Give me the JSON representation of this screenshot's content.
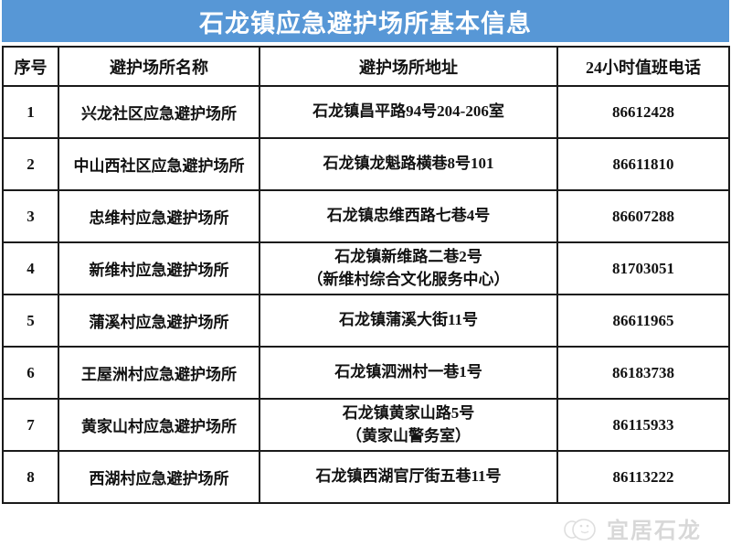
{
  "title": "石龙镇应急避护场所基本信息",
  "table": {
    "headers": [
      "序号",
      "避护场所名称",
      "避护场所地址",
      "24小时值班电话"
    ],
    "rows": [
      {
        "no": "1",
        "name": "兴龙社区应急避护场所",
        "address_lines": [
          "石龙镇昌平路94号204-206室"
        ],
        "phone": "86612428"
      },
      {
        "no": "2",
        "name": "中山西社区应急避护场所",
        "address_lines": [
          "石龙镇龙魁路横巷8号101"
        ],
        "phone": "86611810"
      },
      {
        "no": "3",
        "name": "忠维村应急避护场所",
        "address_lines": [
          "石龙镇忠维西路七巷4号"
        ],
        "phone": "86607288"
      },
      {
        "no": "4",
        "name": "新维村应急避护场所",
        "address_lines": [
          "石龙镇新维路二巷2号",
          "（新维村综合文化服务中心）"
        ],
        "phone": "81703051"
      },
      {
        "no": "5",
        "name": "蒲溪村应急避护场所",
        "address_lines": [
          "石龙镇蒲溪大街11号"
        ],
        "phone": "86611965"
      },
      {
        "no": "6",
        "name": "王屋洲村应急避护场所",
        "address_lines": [
          "石龙镇泗洲村一巷1号"
        ],
        "phone": "86183738"
      },
      {
        "no": "7",
        "name": "黄家山村应急避护场所",
        "address_lines": [
          "石龙镇黄家山路5号",
          "（黄家山警务室）"
        ],
        "phone": "86115933"
      },
      {
        "no": "8",
        "name": "西湖村应急避护场所",
        "address_lines": [
          "石龙镇西湖官厅街五巷11号"
        ],
        "phone": "86113222"
      }
    ]
  },
  "watermark": {
    "label": "宜居石龙",
    "icon": "mascot-logo-icon"
  },
  "colors": {
    "banner": "#5797d6",
    "border": "#1a1a1a",
    "text": "#121212",
    "watermark": "#b9b9b9"
  }
}
